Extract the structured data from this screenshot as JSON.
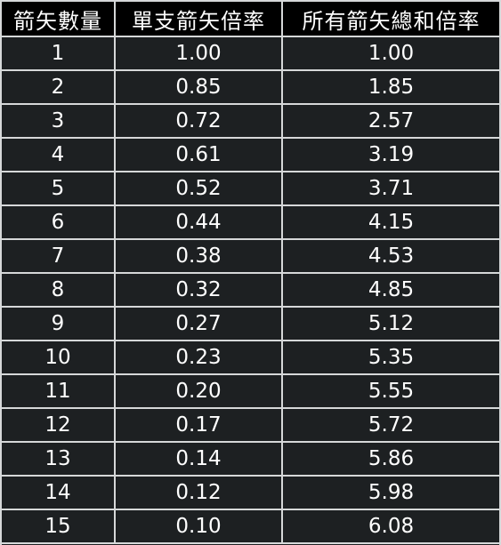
{
  "table": {
    "headers": [
      "箭矢數量",
      "單支箭矢倍率",
      "所有箭矢總和倍率"
    ],
    "rows": [
      [
        "1",
        "1.00",
        "1.00"
      ],
      [
        "2",
        "0.85",
        "1.85"
      ],
      [
        "3",
        "0.72",
        "2.57"
      ],
      [
        "4",
        "0.61",
        "3.19"
      ],
      [
        "5",
        "0.52",
        "3.71"
      ],
      [
        "6",
        "0.44",
        "4.15"
      ],
      [
        "7",
        "0.38",
        "4.53"
      ],
      [
        "8",
        "0.32",
        "4.85"
      ],
      [
        "9",
        "0.27",
        "5.12"
      ],
      [
        "10",
        "0.23",
        "5.35"
      ],
      [
        "11",
        "0.20",
        "5.55"
      ],
      [
        "12",
        "0.17",
        "5.72"
      ],
      [
        "13",
        "0.14",
        "5.86"
      ],
      [
        "14",
        "0.12",
        "5.98"
      ],
      [
        "15",
        "0.10",
        "6.08"
      ]
    ]
  },
  "colors": {
    "header_bg": "#000000",
    "cell_bg": "#1d2022",
    "grid": "#d6d8d9",
    "text": "#ffffff"
  }
}
